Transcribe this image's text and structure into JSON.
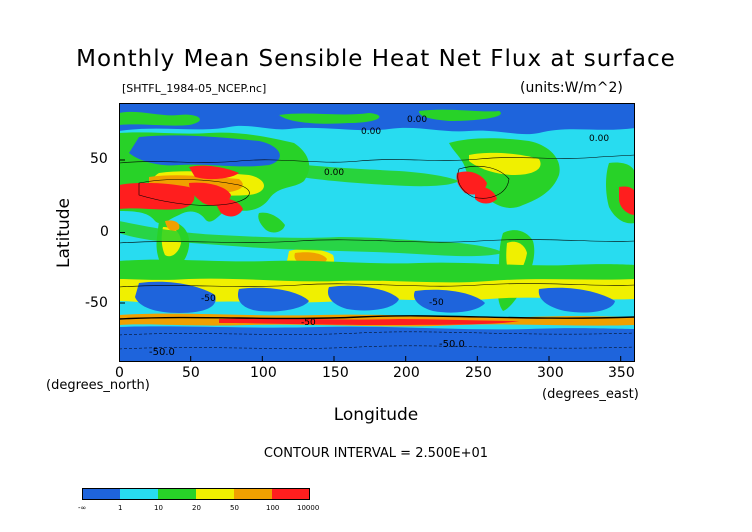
{
  "title": "Monthly Mean Sensible Heat Net Flux at surface",
  "file_label": "[SHTFL_1984-05_NCEP.nc]",
  "units_label": "(units:W/m^2)",
  "y_axis": {
    "title": "Latitude",
    "unit_label": "(degrees_north)",
    "ticks": [
      "50",
      "0",
      "-50"
    ]
  },
  "x_axis": {
    "title": "Longitude",
    "unit_label": "(degrees_east)",
    "ticks": [
      "0",
      "50",
      "100",
      "150",
      "200",
      "250",
      "300",
      "350"
    ]
  },
  "contour_interval": "CONTOUR INTERVAL = 2.500E+01",
  "map_contour_labels": [
    "0.00",
    "0.00",
    "0.00",
    "-50",
    "-50",
    "-50.0",
    "-50.0",
    "-50",
    "0.00"
  ],
  "legend": {
    "colors": [
      "#1e64dc",
      "#28dcf0",
      "#28d228",
      "#f0f000",
      "#f0a000",
      "#ff1e1e"
    ],
    "labels": [
      "-∞",
      "1",
      "10",
      "20",
      "50",
      "100",
      "10000"
    ]
  }
}
